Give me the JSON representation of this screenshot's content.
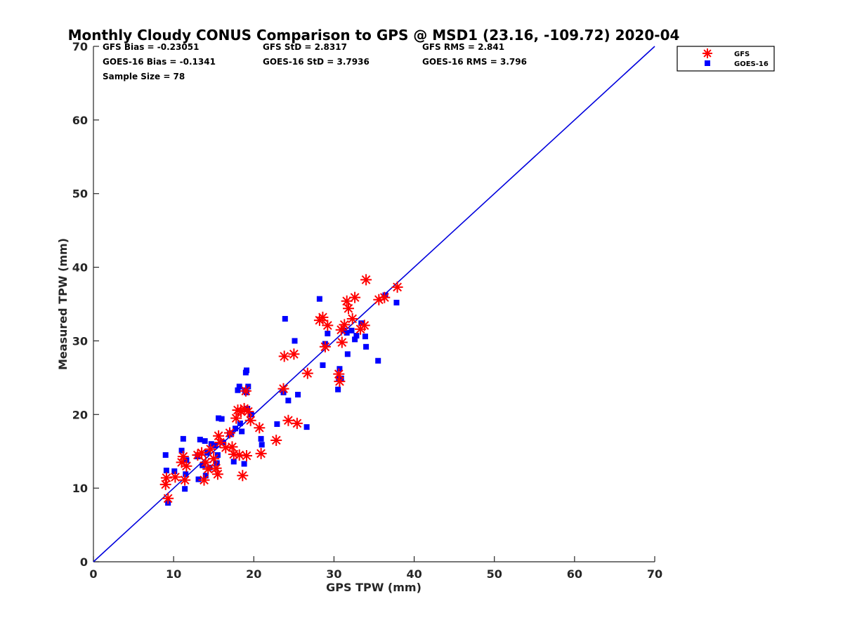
{
  "chart_data": {
    "type": "scatter",
    "title": "Monthly Cloudy CONUS Comparison to GPS @ MSD1 (23.16, -109.72) 2020-04",
    "xlabel": "GPS TPW (mm)",
    "ylabel": "Measured TPW (mm)",
    "xlim": [
      0,
      70
    ],
    "ylim": [
      0,
      70
    ],
    "xticks": [
      "0",
      "10",
      "20",
      "30",
      "40",
      "50",
      "60",
      "70"
    ],
    "yticks": [
      "0",
      "10",
      "20",
      "30",
      "40",
      "50",
      "60",
      "70"
    ],
    "legend_position": "top-right (outside plot)",
    "grid": false,
    "stats": [
      [
        "GFS Bias = -0.23051",
        "GFS StD = 2.8317",
        "GFS RMS = 2.841"
      ],
      [
        "GOES-16 Bias = -0.1341",
        "GOES-16 StD = 3.7936",
        "GOES-16 RMS = 3.796"
      ],
      [
        "Sample Size = 78",
        "",
        ""
      ]
    ],
    "reference_line": {
      "x": [
        0,
        70
      ],
      "y": [
        0,
        70
      ],
      "color": "#0000dd"
    },
    "series": [
      {
        "name": "GFS",
        "marker": "asterisk",
        "color": "#ff0000",
        "points": [
          [
            9.0,
            10.5
          ],
          [
            9.1,
            11.4
          ],
          [
            9.3,
            8.6
          ],
          [
            10.2,
            11.5
          ],
          [
            11.0,
            13.5
          ],
          [
            11.2,
            14.3
          ],
          [
            11.4,
            11.1
          ],
          [
            11.6,
            13.0
          ],
          [
            13.0,
            14.5
          ],
          [
            13.5,
            14.8
          ],
          [
            13.8,
            11.1
          ],
          [
            14.0,
            13.5
          ],
          [
            14.3,
            12.6
          ],
          [
            14.6,
            15.3
          ],
          [
            15.0,
            14.0
          ],
          [
            15.3,
            12.7
          ],
          [
            15.5,
            11.9
          ],
          [
            15.6,
            17.1
          ],
          [
            15.8,
            16.2
          ],
          [
            16.5,
            15.5
          ],
          [
            17.0,
            17.5
          ],
          [
            17.3,
            15.6
          ],
          [
            17.5,
            14.6
          ],
          [
            17.8,
            19.5
          ],
          [
            18.0,
            20.6
          ],
          [
            18.2,
            14.5
          ],
          [
            18.4,
            20.4
          ],
          [
            18.6,
            11.7
          ],
          [
            18.8,
            20.8
          ],
          [
            19.0,
            23.2
          ],
          [
            19.1,
            14.4
          ],
          [
            19.3,
            20.4
          ],
          [
            19.6,
            19.2
          ],
          [
            20.7,
            18.2
          ],
          [
            20.9,
            14.7
          ],
          [
            22.8,
            16.5
          ],
          [
            23.7,
            23.5
          ],
          [
            23.8,
            27.9
          ],
          [
            24.3,
            19.2
          ],
          [
            25.0,
            28.2
          ],
          [
            25.4,
            18.8
          ],
          [
            26.7,
            25.6
          ],
          [
            28.2,
            32.8
          ],
          [
            28.6,
            33.2
          ],
          [
            28.9,
            29.2
          ],
          [
            29.2,
            32.1
          ],
          [
            30.6,
            25.5
          ],
          [
            30.7,
            24.5
          ],
          [
            30.9,
            31.5
          ],
          [
            31.0,
            29.8
          ],
          [
            31.3,
            32.2
          ],
          [
            31.6,
            35.4
          ],
          [
            31.8,
            34.4
          ],
          [
            32.3,
            33.0
          ],
          [
            32.6,
            35.9
          ],
          [
            33.3,
            31.6
          ],
          [
            33.8,
            32.1
          ],
          [
            34.0,
            38.3
          ],
          [
            35.6,
            35.6
          ],
          [
            36.3,
            35.9
          ],
          [
            37.9,
            37.3
          ]
        ]
      },
      {
        "name": "GOES-16",
        "marker": "square",
        "color": "#0000ff",
        "points": [
          [
            9.0,
            14.5
          ],
          [
            9.1,
            12.4
          ],
          [
            9.3,
            8.0
          ],
          [
            10.1,
            12.3
          ],
          [
            11.0,
            15.1
          ],
          [
            11.2,
            16.7
          ],
          [
            11.4,
            9.9
          ],
          [
            11.5,
            11.9
          ],
          [
            11.6,
            13.8
          ],
          [
            13.0,
            14.3
          ],
          [
            13.1,
            11.2
          ],
          [
            13.3,
            16.6
          ],
          [
            13.6,
            13.1
          ],
          [
            13.9,
            16.4
          ],
          [
            14.0,
            11.7
          ],
          [
            14.2,
            14.8
          ],
          [
            14.5,
            12.8
          ],
          [
            14.7,
            16.0
          ],
          [
            15.2,
            15.8
          ],
          [
            15.4,
            13.4
          ],
          [
            15.5,
            14.5
          ],
          [
            15.6,
            19.5
          ],
          [
            16.0,
            19.4
          ],
          [
            16.2,
            16.2
          ],
          [
            17.0,
            17.3
          ],
          [
            17.2,
            17.5
          ],
          [
            17.5,
            13.6
          ],
          [
            17.7,
            18.1
          ],
          [
            18.0,
            23.3
          ],
          [
            18.2,
            23.8
          ],
          [
            18.3,
            18.8
          ],
          [
            18.5,
            17.7
          ],
          [
            18.8,
            13.3
          ],
          [
            18.9,
            23.3
          ],
          [
            19.0,
            25.7
          ],
          [
            19.1,
            26.0
          ],
          [
            19.1,
            23.0
          ],
          [
            19.2,
            20.8
          ],
          [
            19.3,
            23.8
          ],
          [
            19.7,
            20.0
          ],
          [
            20.9,
            16.7
          ],
          [
            21.0,
            15.9
          ],
          [
            22.9,
            18.7
          ],
          [
            23.7,
            23.0
          ],
          [
            23.9,
            33.0
          ],
          [
            24.3,
            21.9
          ],
          [
            25.1,
            30.0
          ],
          [
            25.5,
            22.7
          ],
          [
            26.6,
            18.3
          ],
          [
            28.2,
            35.7
          ],
          [
            28.6,
            26.7
          ],
          [
            28.9,
            29.6
          ],
          [
            29.2,
            31.0
          ],
          [
            30.5,
            23.4
          ],
          [
            30.6,
            24.9
          ],
          [
            30.7,
            26.2
          ],
          [
            30.9,
            24.9
          ],
          [
            31.2,
            31.4
          ],
          [
            31.6,
            31.1
          ],
          [
            31.7,
            28.2
          ],
          [
            32.2,
            31.4
          ],
          [
            32.6,
            30.2
          ],
          [
            32.8,
            30.7
          ],
          [
            33.4,
            32.4
          ],
          [
            33.9,
            30.6
          ],
          [
            34.0,
            29.2
          ],
          [
            35.5,
            27.3
          ],
          [
            36.4,
            36.2
          ],
          [
            37.8,
            35.2
          ]
        ]
      }
    ]
  }
}
